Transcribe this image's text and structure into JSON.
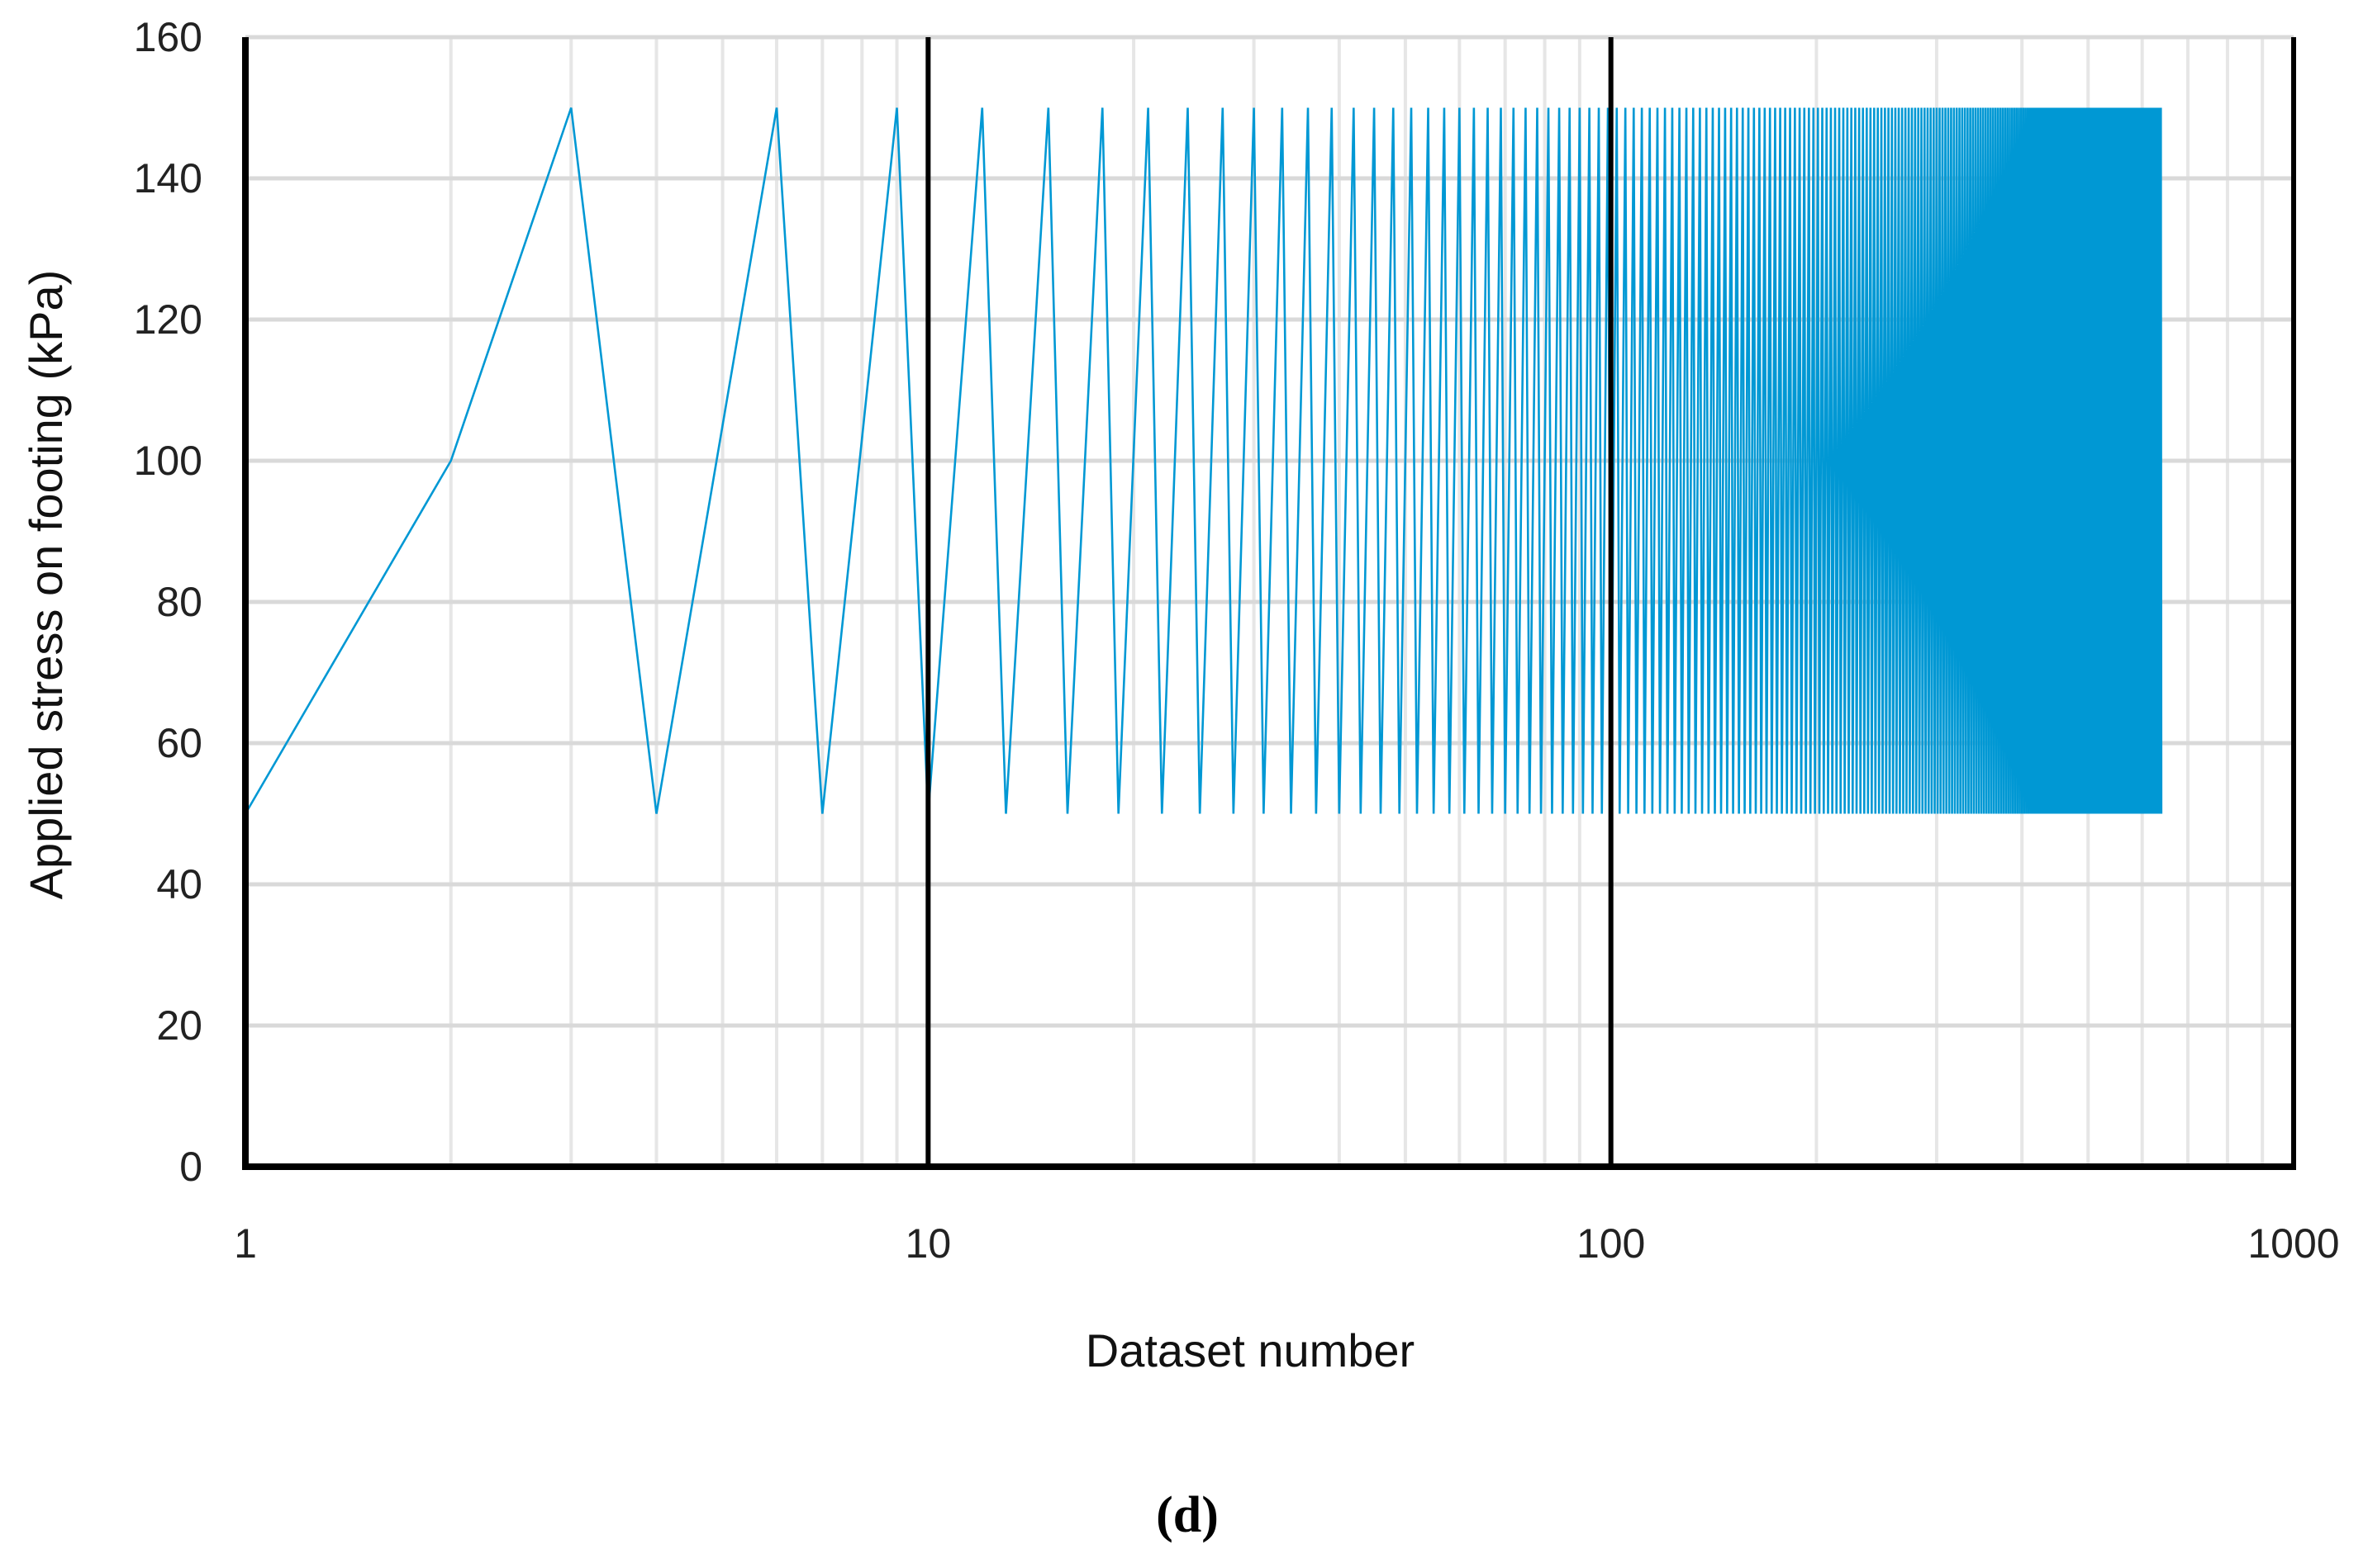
{
  "chart_data": {
    "type": "line",
    "xlabel": "Dataset number",
    "ylabel": "Applied stress on footing (kPa)",
    "panel_label": "(d)",
    "x_scale": "log",
    "xlim": [
      1,
      1000
    ],
    "ylim": [
      0,
      160
    ],
    "x_ticks": [
      1,
      10,
      100,
      1000
    ],
    "x_tick_labels": [
      "1",
      "10",
      "100",
      "1000"
    ],
    "y_ticks": [
      0,
      20,
      40,
      60,
      80,
      100,
      120,
      140,
      160
    ],
    "y_tick_labels": [
      "0",
      "20",
      "40",
      "60",
      "80",
      "100",
      "120",
      "140",
      "160"
    ],
    "grid": true,
    "legend": "none",
    "series": [
      {
        "color": "#0098d4",
        "initial_points": [
          {
            "x": 1,
            "y": 50
          },
          {
            "x": 2,
            "y": 100
          },
          {
            "x": 3,
            "y": 150
          }
        ],
        "cycle": {
          "min_stress": 50,
          "max_stress": 150,
          "first_min_x": 4,
          "first_max_x": 6,
          "period": 3,
          "last_x": 640
        }
      }
    ]
  }
}
